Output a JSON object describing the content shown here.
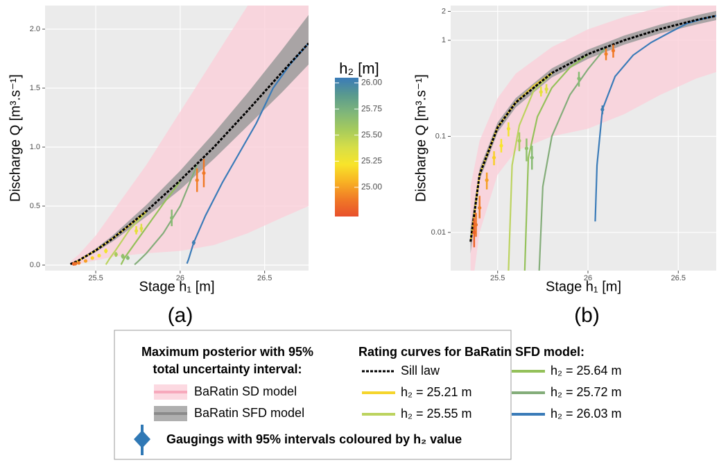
{
  "chart_data": {
    "type": "line",
    "panels": [
      {
        "panel_label": "(a)",
        "x_label": "Stage h₁ [m]",
        "y_label": "Discharge Q [m³.s⁻¹]",
        "log_y": false,
        "xlim": [
          25.2,
          26.76
        ],
        "xticks": [
          25.5,
          26,
          26.5
        ],
        "ylim": [
          -0.047,
          2.2
        ],
        "yticks": [
          {
            "value": 0,
            "label": "0.0"
          },
          {
            "value": 0.5,
            "label": "0.5"
          },
          {
            "value": 1,
            "label": "1.0"
          },
          {
            "value": 1.5,
            "label": "1.5"
          },
          {
            "value": 2,
            "label": "2.0"
          }
        ]
      },
      {
        "panel_label": "(b)",
        "x_label": "Stage h₁ [m]",
        "y_label": "Discharge Q [m³.s⁻¹]",
        "log_y": true,
        "xlim": [
          25.24,
          26.71
        ],
        "xticks": [
          25.5,
          26,
          26.5
        ],
        "ylim": [
          0.004,
          2.3
        ],
        "yticks": [
          0.01,
          0.1,
          1,
          2
        ]
      }
    ],
    "bands": [
      {
        "name": "BaRatin SD model",
        "color": "#f7a9bc",
        "fill": "#fbd0da",
        "x": [
          25.35,
          25.4,
          25.5,
          25.6,
          25.8,
          26.0,
          26.2,
          26.4,
          26.6,
          26.76
        ],
        "lower": [
          0.002,
          0.01,
          0.04,
          0.07,
          0.1,
          0.12,
          0.17,
          0.27,
          0.4,
          0.5
        ],
        "upper": [
          0.03,
          0.09,
          0.25,
          0.45,
          0.85,
          1.3,
          1.75,
          2.2,
          2.6,
          2.9
        ]
      },
      {
        "name": "BaRatin SFD model",
        "color": "#8a8a8a",
        "fill": "#9b9b9b",
        "x": [
          25.35,
          25.4,
          25.5,
          25.6,
          25.8,
          26.0,
          26.2,
          26.4,
          26.6,
          26.76
        ],
        "lower": [
          0.006,
          0.035,
          0.11,
          0.2,
          0.41,
          0.64,
          0.9,
          1.18,
          1.46,
          1.7
        ],
        "upper": [
          0.011,
          0.046,
          0.14,
          0.25,
          0.51,
          0.8,
          1.12,
          1.46,
          1.82,
          2.12
        ]
      }
    ],
    "series": [
      {
        "name": "Sill law",
        "color": "#000000",
        "line_style": "dotted",
        "x": [
          25.35,
          25.4,
          25.5,
          25.6,
          25.8,
          26.0,
          26.2,
          26.4,
          26.6,
          26.76
        ],
        "values": [
          0.008,
          0.04,
          0.124,
          0.225,
          0.457,
          0.718,
          1.0,
          1.31,
          1.63,
          1.88
        ]
      },
      {
        "name": "h₂ = 25.21 m",
        "color": "#f5d52c",
        "line_style": "solid",
        "x": [
          25.35,
          25.4,
          25.5,
          25.6,
          25.7,
          25.8
        ],
        "values": [
          0.008,
          0.04,
          0.124,
          0.225,
          0.336,
          0.457
        ]
      },
      {
        "name": "h₂ = 25.55 m",
        "color": "#bcd35f",
        "line_style": "solid",
        "x": [
          25.56,
          25.58,
          25.62,
          25.7,
          25.8
        ],
        "values": [
          0.004,
          0.05,
          0.13,
          0.3,
          0.45
        ]
      },
      {
        "name": "h₂ = 25.64 m",
        "color": "#94c15a",
        "line_style": "solid",
        "x": [
          25.65,
          25.67,
          25.72,
          25.8,
          25.9,
          26.0
        ],
        "values": [
          0.004,
          0.06,
          0.16,
          0.32,
          0.52,
          0.71
        ]
      },
      {
        "name": "h₂ = 25.72 m",
        "color": "#84ad7a",
        "line_style": "solid",
        "x": [
          25.73,
          25.75,
          25.8,
          25.9,
          26.0,
          26.1
        ],
        "values": [
          0.004,
          0.03,
          0.1,
          0.27,
          0.5,
          0.85
        ]
      },
      {
        "name": "h₂ = 26.03 m",
        "color": "#3a7bb8",
        "line_style": "solid",
        "x": [
          26.04,
          26.05,
          26.08,
          26.15,
          26.25,
          26.35,
          26.45,
          26.55,
          26.65,
          26.76
        ],
        "values": [
          0.013,
          0.05,
          0.19,
          0.42,
          0.7,
          0.95,
          1.2,
          1.5,
          1.7,
          1.88
        ]
      }
    ],
    "gaugings": {
      "name": "Gaugings with 95% intervals coloured by h₂ value",
      "x": [
        25.37,
        25.38,
        25.4,
        25.44,
        25.48,
        25.52,
        25.56,
        25.62,
        25.66,
        25.69,
        25.74,
        25.77,
        25.95,
        26.08,
        26.1,
        26.14
      ],
      "values": [
        0.01,
        0.012,
        0.018,
        0.035,
        0.06,
        0.08,
        0.12,
        0.09,
        0.075,
        0.06,
        0.29,
        0.31,
        0.4,
        0.19,
        0.72,
        0.78
      ],
      "lower": [
        0.007,
        0.009,
        0.014,
        0.028,
        0.05,
        0.068,
        0.1,
        0.07,
        0.055,
        0.045,
        0.26,
        0.28,
        0.33,
        0.17,
        0.62,
        0.66
      ],
      "upper": [
        0.014,
        0.016,
        0.024,
        0.042,
        0.07,
        0.094,
        0.14,
        0.11,
        0.095,
        0.08,
        0.33,
        0.35,
        0.47,
        0.21,
        0.82,
        0.9
      ],
      "h2": [
        24.8,
        24.85,
        24.9,
        25.0,
        25.15,
        25.22,
        25.25,
        25.55,
        25.64,
        25.68,
        25.3,
        25.35,
        25.68,
        26.03,
        24.9,
        24.88
      ]
    },
    "colorbar": {
      "title": "h₂ [m]",
      "lim": [
        24.72,
        26.05
      ],
      "ticks": [
        {
          "value": 25,
          "label": "25.00"
        },
        {
          "value": 25.25,
          "label": "25.25"
        },
        {
          "value": 25.5,
          "label": "25.50"
        },
        {
          "value": 25.75,
          "label": "25.75"
        },
        {
          "value": 26,
          "label": "26.00"
        }
      ],
      "colors": [
        "#e8502c",
        "#f07a26",
        "#f8b224",
        "#f8e42a",
        "#d6de48",
        "#a6cb5c",
        "#7fb67a",
        "#5a9a8e",
        "#3a7bb8"
      ]
    },
    "legend": {
      "band_title": [
        "Maximum posterior with 95%",
        "total uncertainty interval:"
      ],
      "curve_title": "Rating curves for BaRatin SFD model:"
    }
  }
}
